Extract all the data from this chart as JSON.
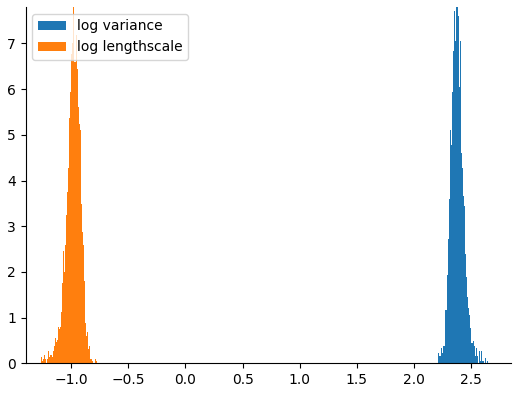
{
  "log_variance_mean": 2.37,
  "log_variance_std": 0.048,
  "log_variance_color": "#1f77b4",
  "log_variance_label": "log variance",
  "log_lengthscale_mean": -0.97,
  "log_lengthscale_std": 0.052,
  "log_lengthscale_color": "#ff7f0e",
  "log_lengthscale_label": "log lengthscale",
  "xlim": [
    -1.4,
    2.85
  ],
  "ylim": [
    0,
    7.8
  ],
  "xticks": [
    -1.0,
    -0.5,
    0.0,
    0.5,
    1.0,
    1.5,
    2.0,
    2.5
  ],
  "yticks": [
    0,
    1,
    2,
    3,
    4,
    5,
    6,
    7
  ],
  "n_samples": 5000,
  "seed": 7,
  "bins": 120,
  "figsize": [
    5.18,
    3.94
  ],
  "dpi": 100,
  "legend_loc": "upper left",
  "legend_fontsize": 10
}
